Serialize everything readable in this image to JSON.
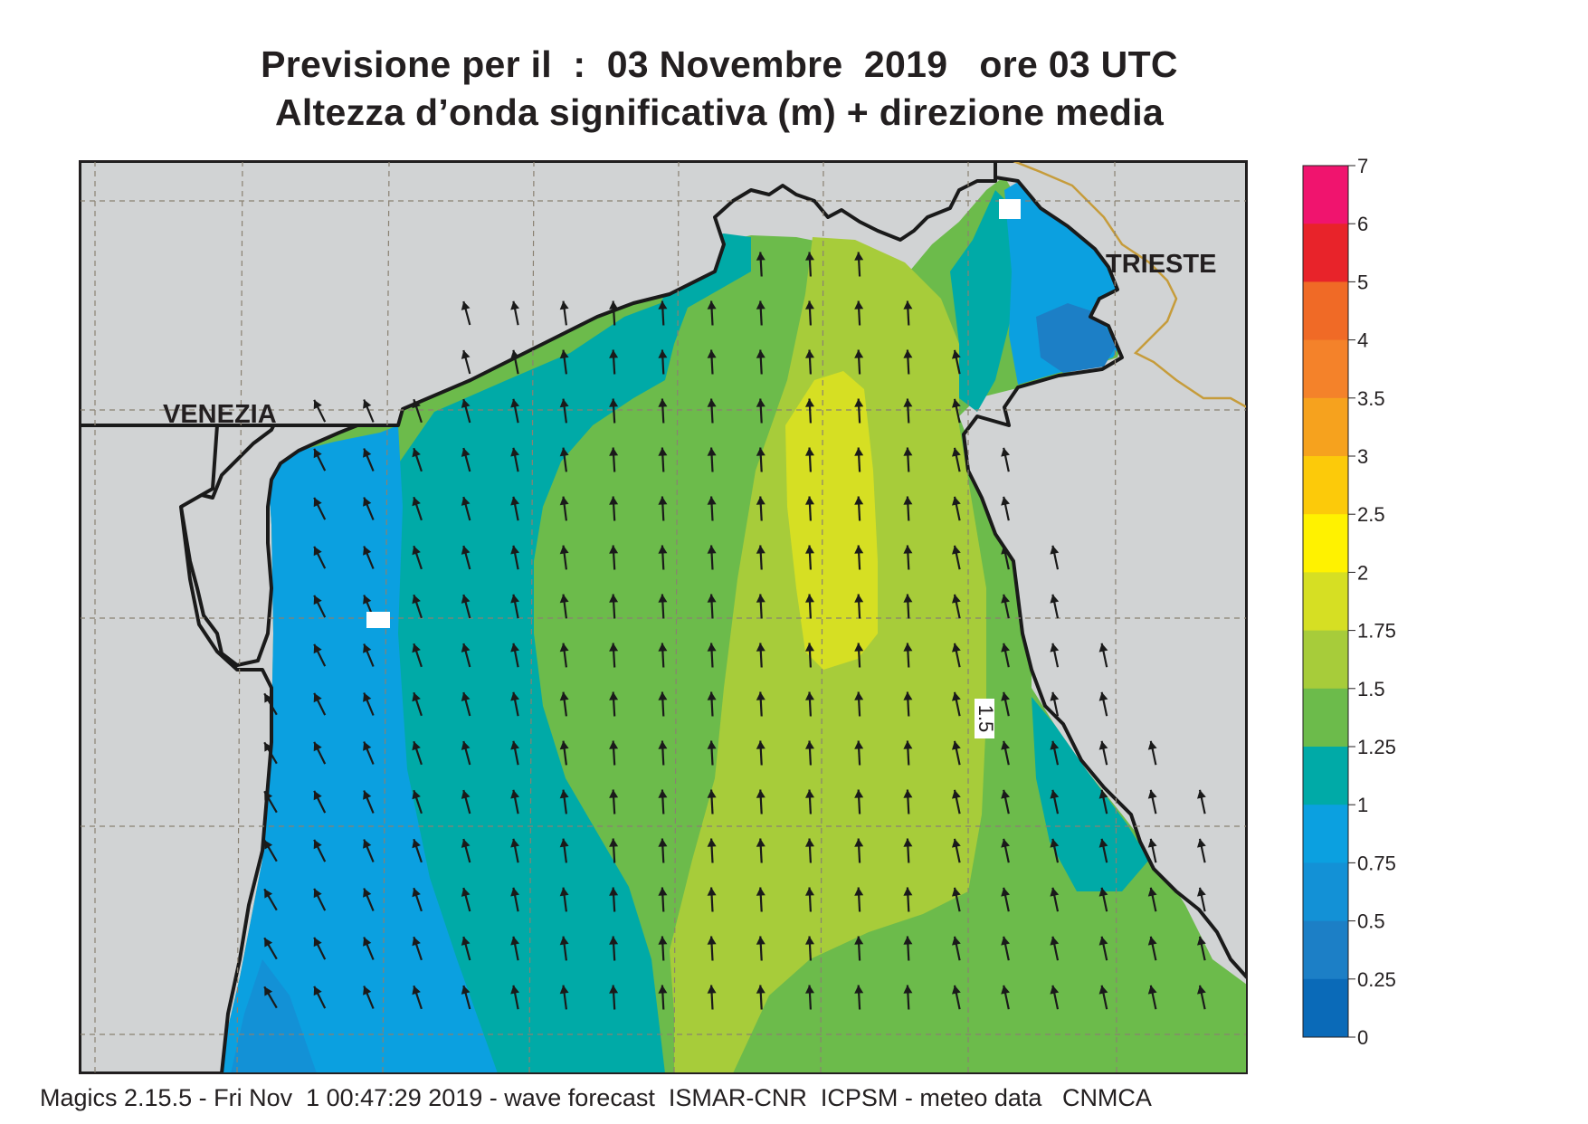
{
  "title": {
    "line1": "Previsione per il  :  03 Novembre  2019   ore 03 UTC",
    "line2": "Altezza d’onda significativa (m) + direzione media"
  },
  "places": {
    "venezia": "VENEZIA",
    "trieste": "TRIESTE"
  },
  "contour_labels": {
    "mid_1_5": "1.5"
  },
  "colorbar": {
    "ticks": [
      "7",
      "6",
      "5",
      "4",
      "3.5",
      "3",
      "2.5",
      "2",
      "1.75",
      "1.5",
      "1.25",
      "1",
      "0.75",
      "0.5",
      "0.25",
      "0"
    ],
    "colors": [
      "#f0146e",
      "#e8232a",
      "#f06a26",
      "#f4822a",
      "#f6a21e",
      "#fcca0a",
      "#fff200",
      "#d6df23",
      "#a7cc3a",
      "#6cbb4b",
      "#00aaa7",
      "#0ba0e0",
      "#1391d6",
      "#1c7fc6",
      "#0a6ab8"
    ]
  },
  "wave_direction": "N",
  "colors": {
    "land": "#d1d3d4",
    "coast": "#1a1a1a",
    "border": "#c69c3b",
    "arrow": "#1a1a1a"
  },
  "footer": "Magics 2.15.5 - Fri Nov  1 00:47:29 2019 - wave forecast  ISMAR-CNR  ICPSM - meteo data   CNMCA"
}
